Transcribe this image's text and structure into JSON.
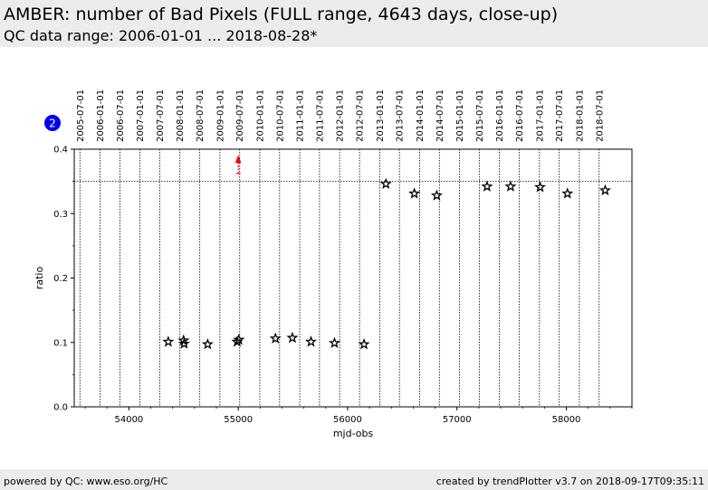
{
  "header": {
    "title": "AMBER: number of Bad Pixels (FULL range, 4643 days, close-up)",
    "subtitle": "QC data range: 2006-01-01 ... 2018-08-28*"
  },
  "badge": {
    "label": "2",
    "color": "#0000ee"
  },
  "footer": {
    "left": "powered by QC: www.eso.org/HC",
    "right": "created by trendPlotter v3.7 on 2018-09-17T09:35:11"
  },
  "chart_data": {
    "type": "scatter",
    "xlabel": "mjd-obs",
    "ylabel": "ratio",
    "xlim": [
      53500,
      58600
    ],
    "ylim": [
      0.0,
      0.4
    ],
    "x_ticks": [
      54000,
      55000,
      56000,
      57000,
      58000
    ],
    "x_tick_labels": [
      "54000",
      "55000",
      "56000",
      "57000",
      "58000"
    ],
    "y_ticks": [
      0.0,
      0.1,
      0.2,
      0.3,
      0.4
    ],
    "y_tick_labels": [
      "0.0",
      "0.1",
      "0.2",
      "0.3",
      "0.4"
    ],
    "date_ticks": [
      {
        "label": "2005-07-01",
        "mjd": 53552
      },
      {
        "label": "2006-01-01",
        "mjd": 53736
      },
      {
        "label": "2006-07-01",
        "mjd": 53917
      },
      {
        "label": "2007-01-01",
        "mjd": 54101
      },
      {
        "label": "2007-07-01",
        "mjd": 54282
      },
      {
        "label": "2008-01-01",
        "mjd": 54466
      },
      {
        "label": "2008-07-01",
        "mjd": 54648
      },
      {
        "label": "2009-01-01",
        "mjd": 54832
      },
      {
        "label": "2009-07-01",
        "mjd": 55013
      },
      {
        "label": "2010-01-01",
        "mjd": 55197
      },
      {
        "label": "2010-07-01",
        "mjd": 55378
      },
      {
        "label": "2011-01-01",
        "mjd": 55562
      },
      {
        "label": "2011-07-01",
        "mjd": 55743
      },
      {
        "label": "2012-01-01",
        "mjd": 55927
      },
      {
        "label": "2012-07-01",
        "mjd": 56109
      },
      {
        "label": "2013-01-01",
        "mjd": 56293
      },
      {
        "label": "2013-07-01",
        "mjd": 56474
      },
      {
        "label": "2014-01-01",
        "mjd": 56658
      },
      {
        "label": "2014-07-01",
        "mjd": 56839
      },
      {
        "label": "2015-01-01",
        "mjd": 57023
      },
      {
        "label": "2015-07-01",
        "mjd": 57204
      },
      {
        "label": "2016-01-01",
        "mjd": 57388
      },
      {
        "label": "2016-07-01",
        "mjd": 57570
      },
      {
        "label": "2017-01-01",
        "mjd": 57754
      },
      {
        "label": "2017-07-01",
        "mjd": 57935
      },
      {
        "label": "2018-01-01",
        "mjd": 58119
      },
      {
        "label": "2018-07-01",
        "mjd": 58300
      }
    ],
    "threshold": 0.35,
    "series": [
      {
        "marker": "star",
        "color": "#000000",
        "points": [
          {
            "x": 54360,
            "y": 0.101
          },
          {
            "x": 54500,
            "y": 0.103
          },
          {
            "x": 54505,
            "y": 0.098
          },
          {
            "x": 54720,
            "y": 0.097
          },
          {
            "x": 54990,
            "y": 0.101
          },
          {
            "x": 55005,
            "y": 0.104
          },
          {
            "x": 55340,
            "y": 0.106
          },
          {
            "x": 55495,
            "y": 0.107
          },
          {
            "x": 55665,
            "y": 0.101
          },
          {
            "x": 55880,
            "y": 0.099
          },
          {
            "x": 56150,
            "y": 0.097
          },
          {
            "x": 56350,
            "y": 0.346
          },
          {
            "x": 56610,
            "y": 0.331
          },
          {
            "x": 56815,
            "y": 0.328
          },
          {
            "x": 57275,
            "y": 0.342
          },
          {
            "x": 57490,
            "y": 0.342
          },
          {
            "x": 57760,
            "y": 0.341
          },
          {
            "x": 58010,
            "y": 0.331
          },
          {
            "x": 58355,
            "y": 0.336
          }
        ]
      }
    ],
    "outliers": [
      {
        "x": 55000,
        "direction": "up",
        "color": "#ff0000"
      }
    ]
  }
}
